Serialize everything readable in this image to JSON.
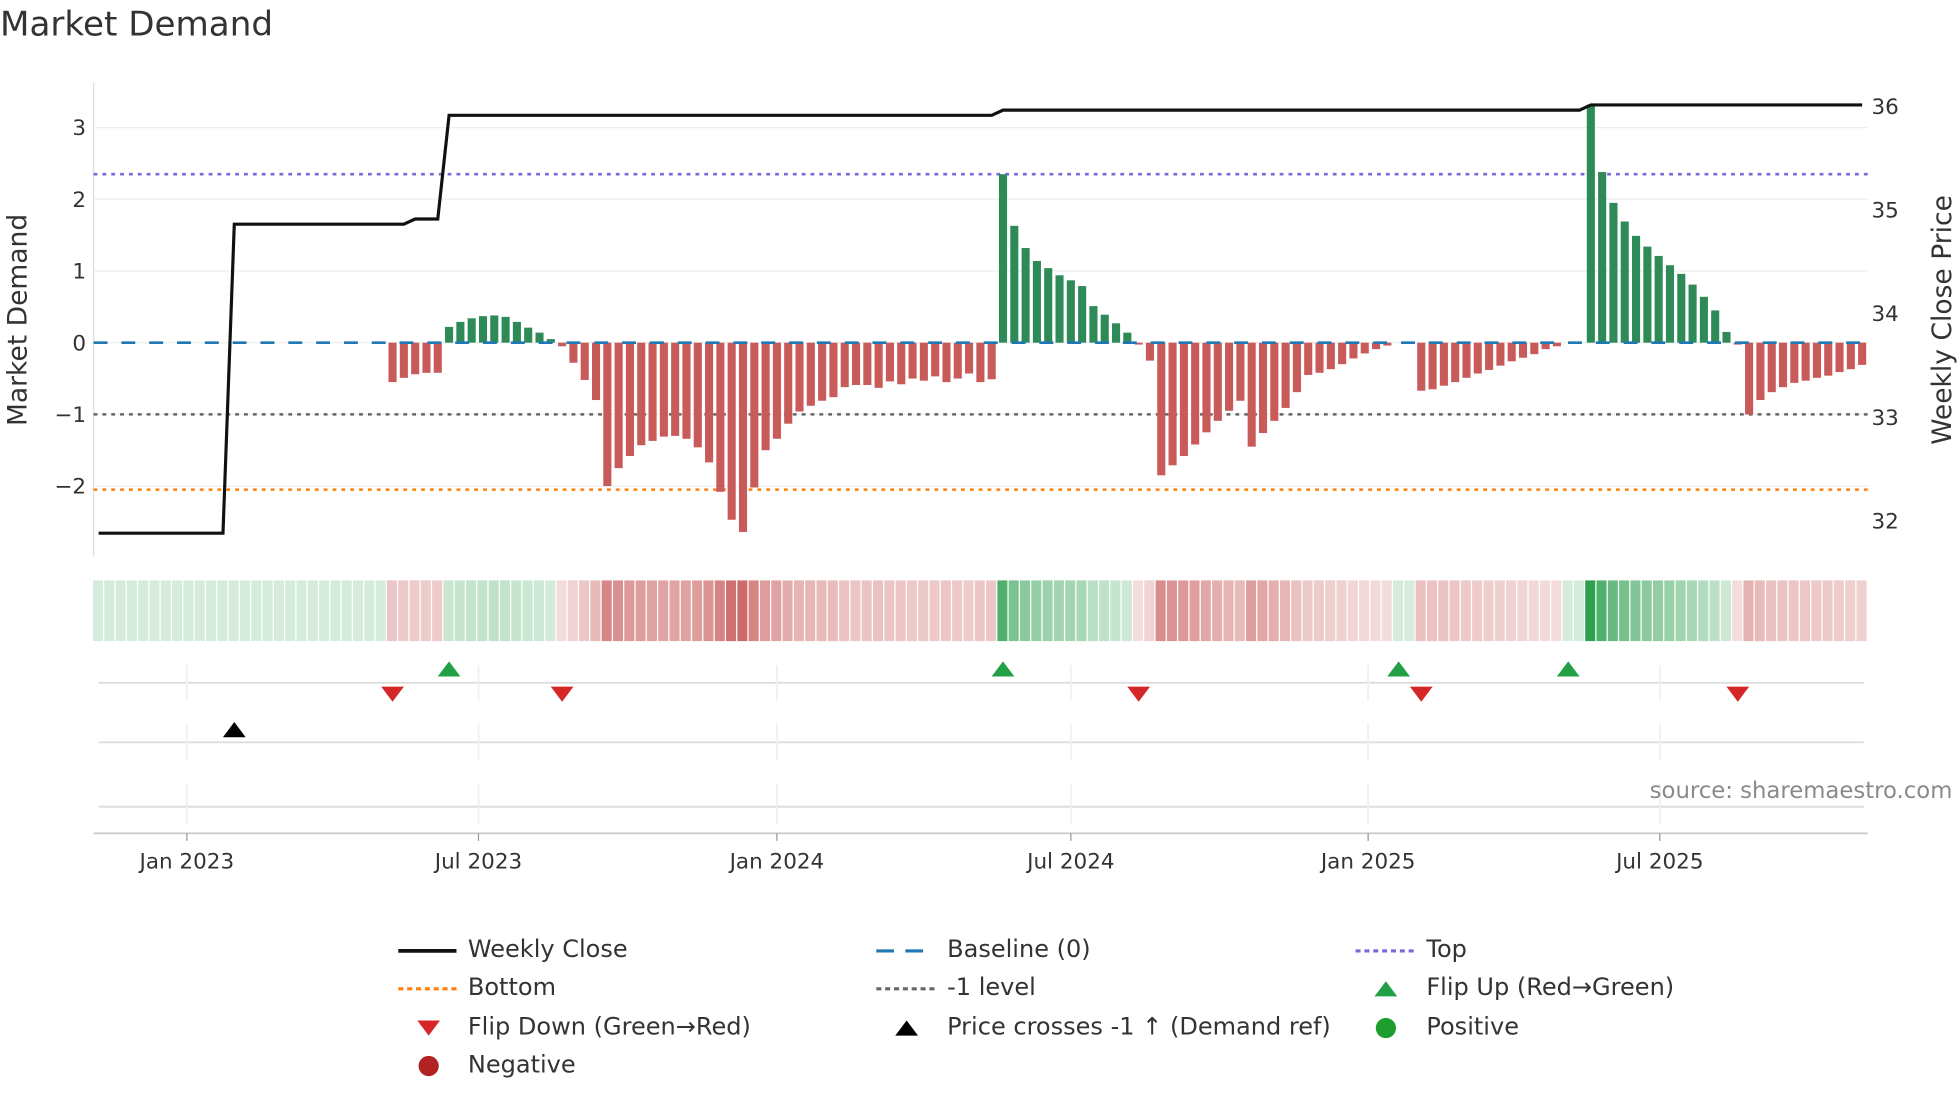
{
  "title": "Market Demand",
  "source": "source: sharemaestro.com",
  "colors": {
    "positive": "#2e8b57",
    "negative": "#c85a5a",
    "price": "#111111",
    "baseline": "#1f77b4",
    "top": "#7b68d8",
    "bottom": "#ff7f0e",
    "minus_one": "#666666",
    "flip_up": "#22a045",
    "flip_down": "#d62728",
    "cross": "#000000",
    "neg_dot": "#b22222",
    "pos_dot": "#1e9e2f"
  },
  "chart_data": {
    "type": "bar",
    "title": "Market Demand",
    "xlabel": "",
    "ylabel": "Market Demand",
    "y2label": "Weekly Close Price",
    "frequency": "weekly",
    "x_ticks": [
      "Jan 2023",
      "Jul 2023",
      "Jan 2024",
      "Jul 2024",
      "Jan 2025",
      "Jul 2025"
    ],
    "x_tick_week_index": [
      7.8,
      33.6,
      60.0,
      86.0,
      112.3,
      138.1
    ],
    "y_ticks": [
      "−2",
      "−1",
      "0",
      "1",
      "2",
      "3"
    ],
    "y_tick_values": [
      -2,
      -1,
      0,
      1,
      2,
      3
    ],
    "y2_ticks": [
      "32",
      "33",
      "34",
      "35",
      "36"
    ],
    "y2_tick_values": [
      32,
      33,
      34,
      35,
      36
    ],
    "ylim": [
      -2.98,
      3.63
    ],
    "y2lim": [
      31.65,
      36.22
    ],
    "reference_lines": {
      "baseline": 0,
      "top": 2.35,
      "bottom": -2.05,
      "minus_one": -1
    },
    "demand": [
      0,
      0,
      0,
      0,
      0,
      0,
      0,
      0,
      0,
      0,
      0,
      0,
      0,
      0,
      0,
      0,
      0,
      0,
      0,
      0,
      0,
      0,
      0,
      0,
      0,
      0,
      -0.55,
      -0.49,
      -0.44,
      -0.42,
      -0.42,
      0.22,
      0.29,
      0.34,
      0.37,
      0.38,
      0.36,
      0.29,
      0.21,
      0.14,
      0.05,
      -0.05,
      -0.28,
      -0.52,
      -0.8,
      -2.0,
      -1.75,
      -1.58,
      -1.43,
      -1.37,
      -1.31,
      -1.3,
      -1.34,
      -1.46,
      -1.67,
      -2.08,
      -2.47,
      -2.64,
      -2.02,
      -1.5,
      -1.34,
      -1.13,
      -0.96,
      -0.88,
      -0.81,
      -0.76,
      -0.62,
      -0.59,
      -0.59,
      -0.63,
      -0.54,
      -0.58,
      -0.5,
      -0.53,
      -0.47,
      -0.55,
      -0.5,
      -0.43,
      -0.55,
      -0.51,
      2.35,
      1.63,
      1.32,
      1.14,
      1.04,
      0.94,
      0.87,
      0.79,
      0.51,
      0.39,
      0.27,
      0.14,
      -0.02,
      -0.25,
      -1.85,
      -1.71,
      -1.58,
      -1.42,
      -1.25,
      -1.09,
      -0.95,
      -0.81,
      -1.45,
      -1.26,
      -1.09,
      -0.91,
      -0.69,
      -0.45,
      -0.42,
      -0.37,
      -0.3,
      -0.22,
      -0.15,
      -0.09,
      -0.04,
      0,
      0,
      -0.67,
      -0.65,
      -0.6,
      -0.55,
      -0.49,
      -0.43,
      -0.38,
      -0.32,
      -0.26,
      -0.21,
      -0.16,
      -0.09,
      -0.05,
      0,
      0,
      3.32,
      2.38,
      1.95,
      1.69,
      1.49,
      1.34,
      1.21,
      1.08,
      0.96,
      0.81,
      0.64,
      0.45,
      0.15,
      -0.02,
      -1.0,
      -0.8,
      -0.69,
      -0.62,
      -0.56,
      -0.53,
      -0.49,
      -0.46,
      -0.41,
      -0.37,
      -0.31
    ],
    "price_steps": [
      {
        "from_week": 0,
        "price": 31.87
      },
      {
        "from_week": 12,
        "price": 34.85
      },
      {
        "from_week": 28,
        "price": 34.9
      },
      {
        "from_week": 31,
        "price": 35.9
      },
      {
        "from_week": 80,
        "price": 35.95
      },
      {
        "from_week": 132,
        "price": 36.0
      }
    ],
    "events": {
      "flip_up_weeks": [
        31,
        80,
        115,
        130
      ],
      "flip_down_weeks": [
        26,
        41,
        92,
        117,
        145
      ],
      "price_cross_weeks": [
        12
      ]
    },
    "legend": [
      {
        "label": "Weekly Close",
        "kind": "line-solid",
        "color": "#111111"
      },
      {
        "label": "Baseline (0)",
        "kind": "line-dashed",
        "color": "#1f77b4"
      },
      {
        "label": "Top",
        "kind": "line-dotted",
        "color": "#7b68d8"
      },
      {
        "label": "Bottom",
        "kind": "line-dotted",
        "color": "#ff7f0e"
      },
      {
        "label": "-1 level",
        "kind": "line-dotted",
        "color": "#666666"
      },
      {
        "label": "Flip Up (Red→Green)",
        "kind": "tri-up",
        "color": "#22a045"
      },
      {
        "label": "Flip Down (Green→Red)",
        "kind": "tri-down",
        "color": "#d62728"
      },
      {
        "label": "Price crosses -1 ↑ (Demand ref)",
        "kind": "tri-up",
        "color": "#000000"
      },
      {
        "label": "Positive",
        "kind": "dot",
        "color": "#1e9e2f"
      },
      {
        "label": "Negative",
        "kind": "dot",
        "color": "#b22222"
      }
    ],
    "legend_placement": "bottom"
  }
}
